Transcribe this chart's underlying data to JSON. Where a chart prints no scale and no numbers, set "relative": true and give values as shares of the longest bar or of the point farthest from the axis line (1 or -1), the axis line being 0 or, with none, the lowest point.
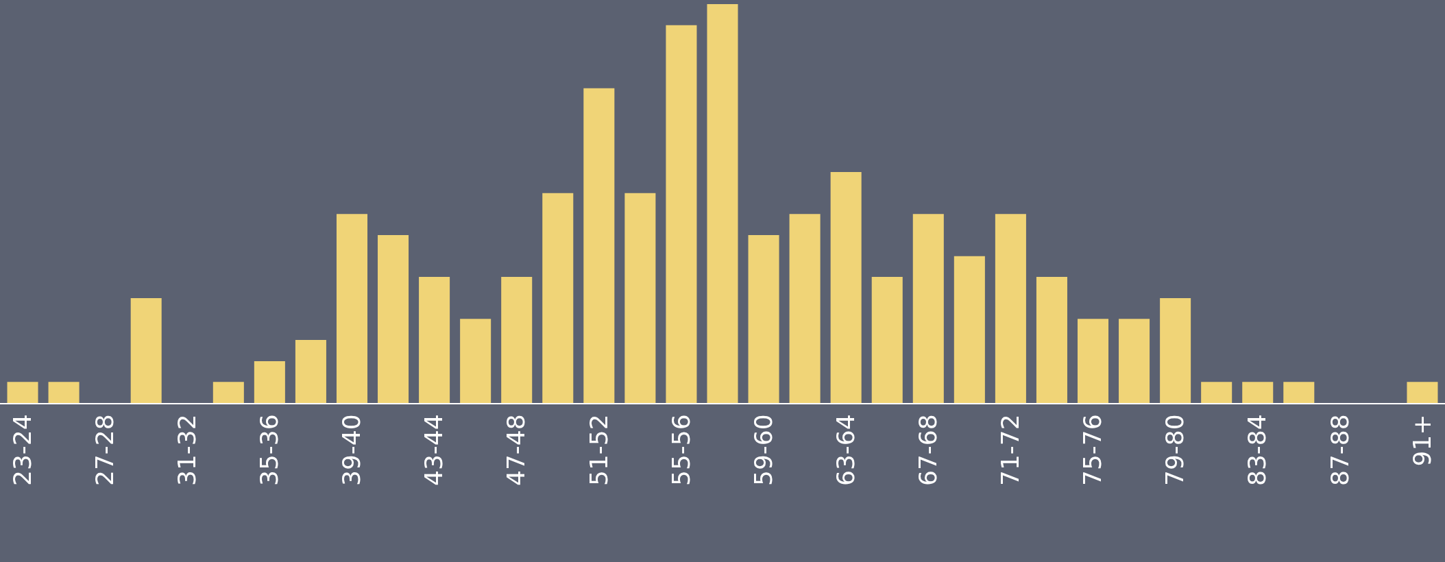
{
  "chart_data": {
    "type": "bar",
    "relative": true,
    "color": "#f0d477",
    "categories": [
      "23-24",
      null,
      "27-28",
      null,
      "31-32",
      null,
      "35-36",
      null,
      "39-40",
      null,
      "43-44",
      null,
      "47-48",
      null,
      "51-52",
      null,
      "55-56",
      null,
      "59-60",
      null,
      "63-64",
      null,
      "67-68",
      null,
      "71-72",
      null,
      "75-76",
      null,
      "79-80",
      null,
      "83-84",
      null,
      "87-88",
      null,
      "91+"
    ],
    "values": [
      0.053,
      0.053,
      0,
      0.263,
      0,
      0.053,
      0.105,
      0.158,
      0.474,
      0.421,
      0.316,
      0.211,
      0.316,
      0.526,
      0.789,
      0.526,
      0.947,
      1,
      0.421,
      0.474,
      0.579,
      0.316,
      0.474,
      0.368,
      0.474,
      0.316,
      0.211,
      0.211,
      0.263,
      0.053,
      0.053,
      0.053,
      0,
      0,
      0.053
    ],
    "grid": false,
    "legend": false
  }
}
